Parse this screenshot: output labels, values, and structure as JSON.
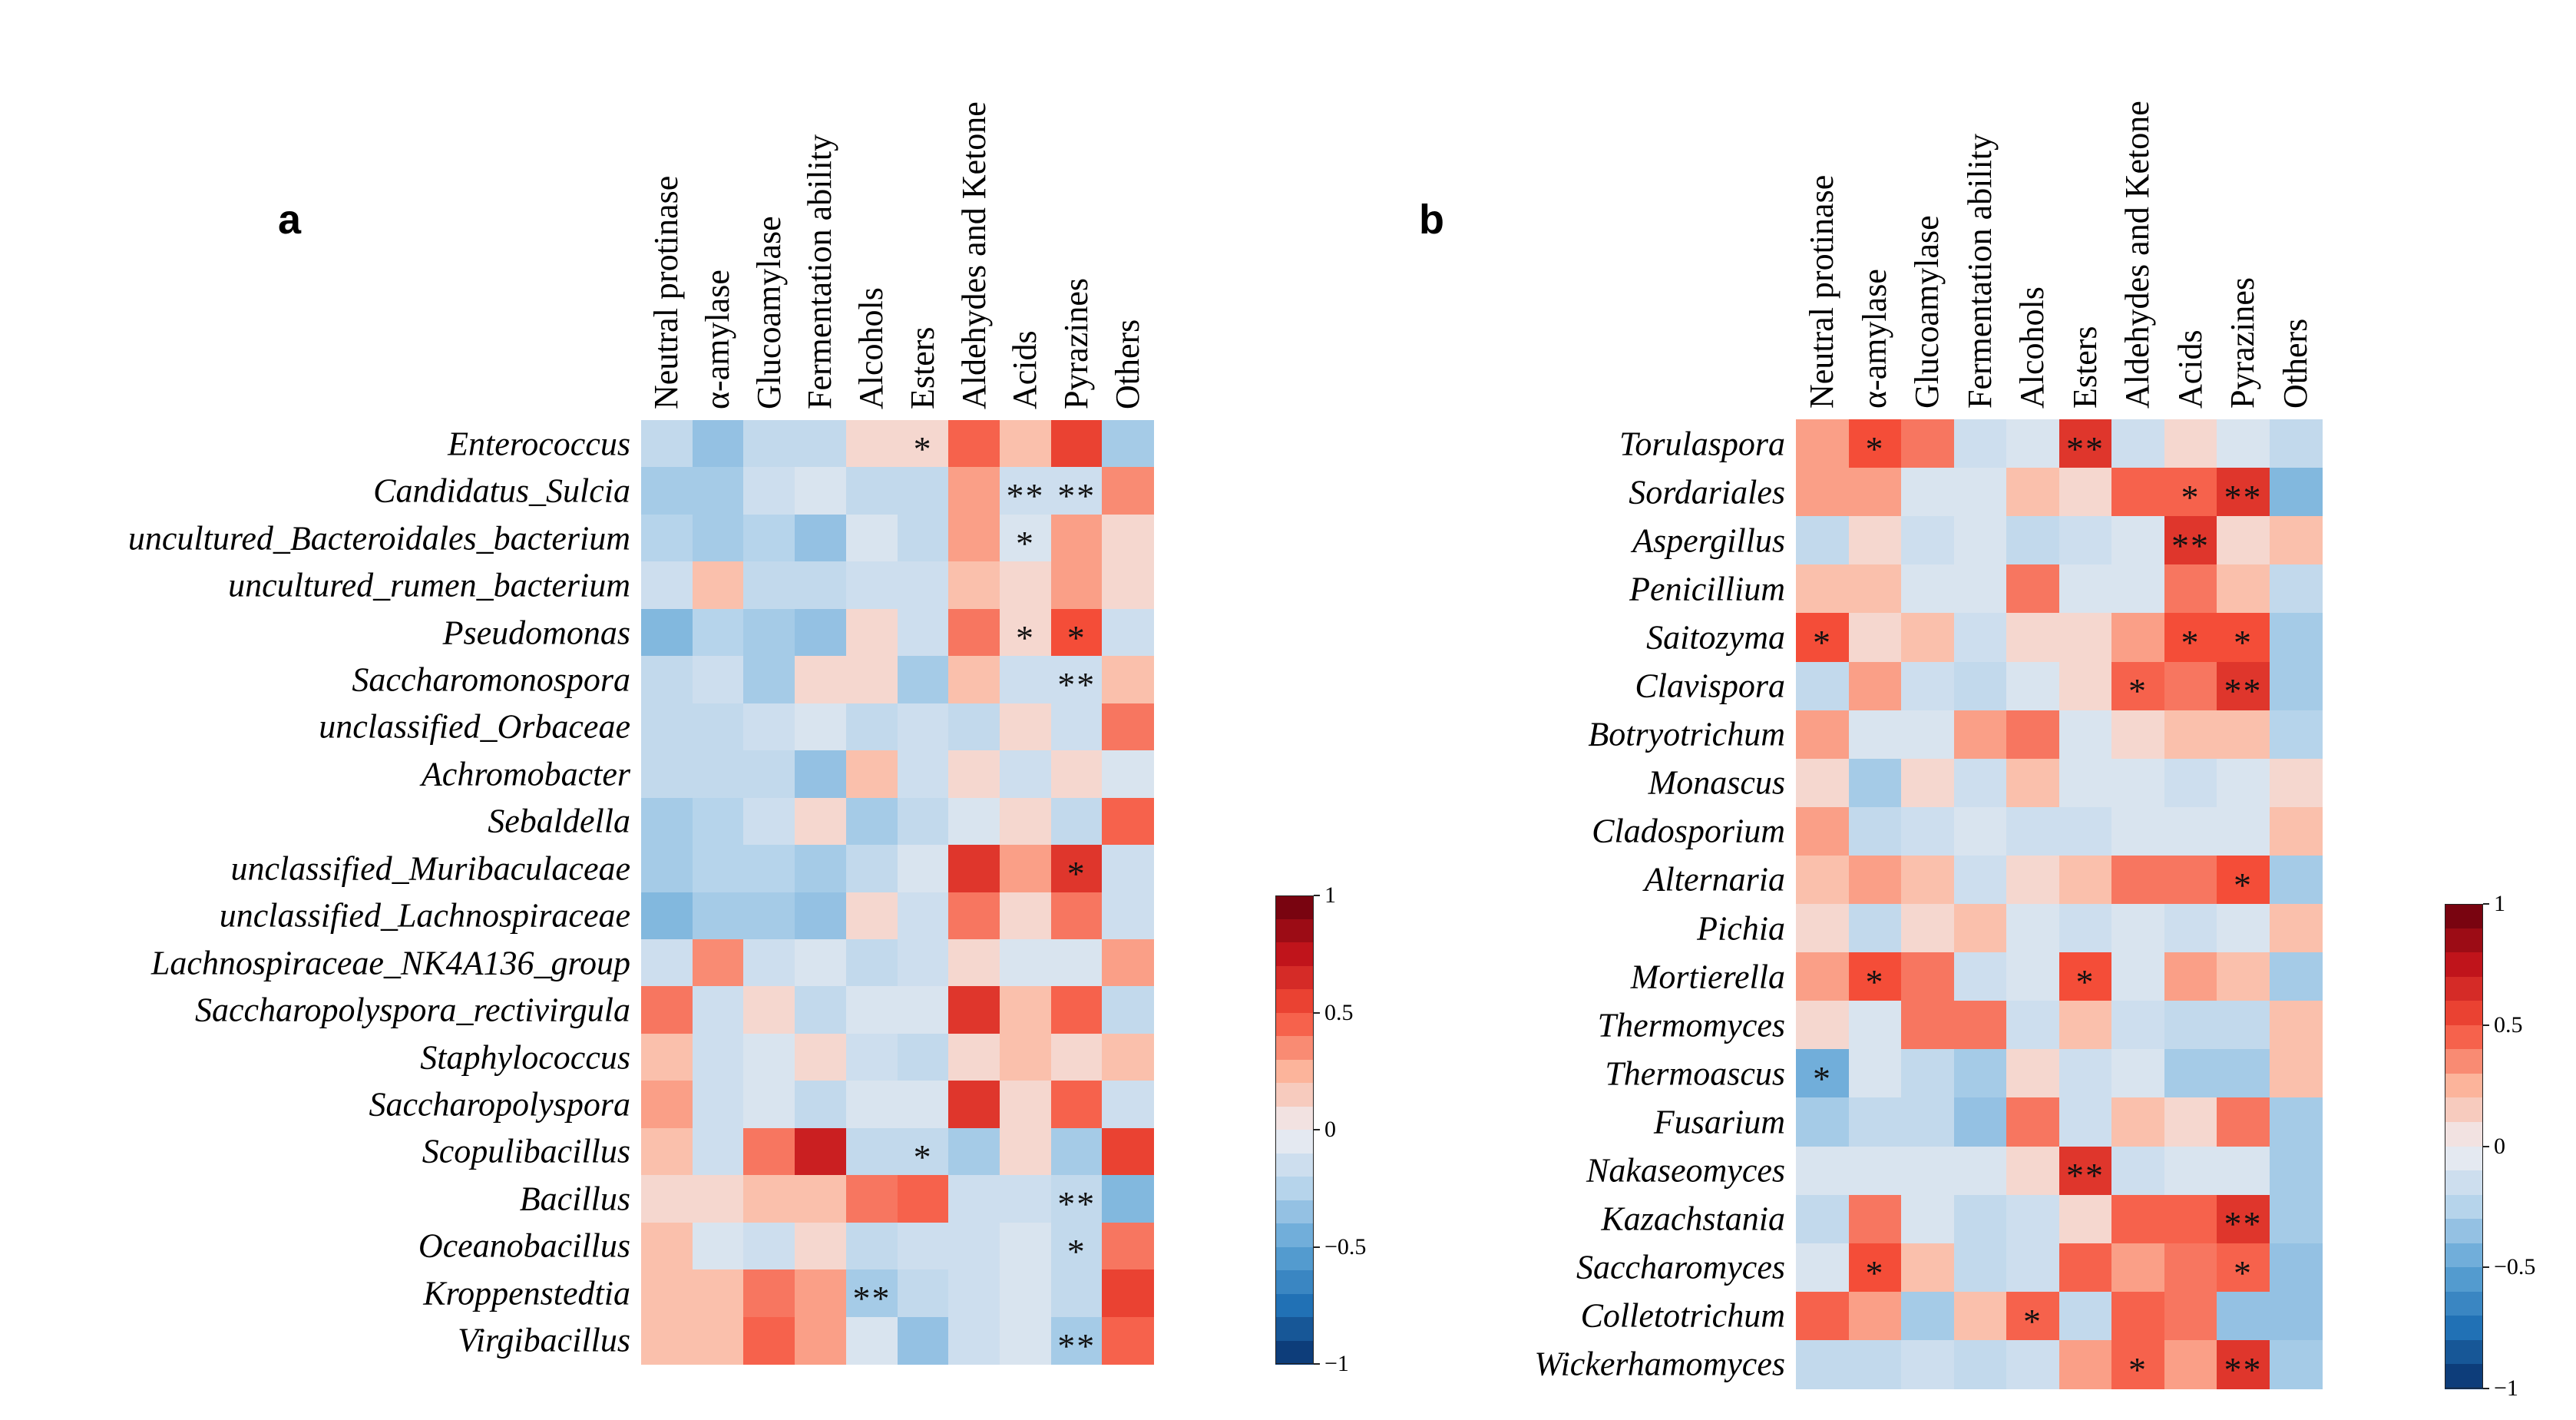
{
  "chart_data": [
    {
      "type": "heatmap",
      "panel_label": "a",
      "columns": [
        "Neutral protinase",
        "α-amylase",
        "Glucoamylase",
        "Fermentation ability",
        "Alcohols",
        "Esters",
        "Aldehydes and Ketone",
        "Acids",
        "Pyrazines",
        "Others"
      ],
      "rows": [
        "Enterococcus",
        "Candidatus_Sulcia",
        "uncultured_Bacteroidales_bacterium",
        "uncultured_rumen_bacterium",
        "Pseudomonas",
        "Saccharomonospora",
        "unclassified_Orbaceae",
        "Achromobacter",
        "Sebaldella",
        "unclassified_Muribaculaceae",
        "unclassified_Lachnospiraceae",
        "Lachnospiraceae_NK4A136_group",
        "Saccharopolyspora_rectivirgula",
        "Staphylococcus",
        "Saccharopolyspora",
        "Scopulibacillus",
        "Bacillus",
        "Oceanobacillus",
        "Kroppenstedtia",
        "Virgibacillus"
      ],
      "values": [
        [
          -0.2,
          -0.35,
          -0.2,
          -0.2,
          0.1,
          0.1,
          0.45,
          0.2,
          0.55,
          -0.3
        ],
        [
          -0.3,
          -0.3,
          -0.15,
          -0.1,
          -0.2,
          -0.2,
          0.3,
          -0.15,
          -0.15,
          0.35
        ],
        [
          -0.25,
          -0.3,
          -0.25,
          -0.35,
          -0.1,
          -0.2,
          0.3,
          -0.1,
          0.3,
          0.1
        ],
        [
          -0.15,
          0.2,
          -0.2,
          -0.2,
          -0.15,
          -0.15,
          0.2,
          0.1,
          0.3,
          0.1
        ],
        [
          -0.4,
          -0.25,
          -0.3,
          -0.35,
          0.1,
          -0.15,
          0.4,
          0.1,
          0.5,
          -0.15
        ],
        [
          -0.2,
          -0.15,
          -0.3,
          0.1,
          0.1,
          -0.3,
          0.2,
          -0.15,
          -0.15,
          0.2
        ],
        [
          -0.2,
          -0.2,
          -0.15,
          -0.1,
          -0.2,
          -0.15,
          -0.2,
          0.1,
          -0.15,
          0.4
        ],
        [
          -0.2,
          -0.2,
          -0.2,
          -0.35,
          0.2,
          -0.15,
          0.1,
          -0.15,
          0.1,
          -0.1
        ],
        [
          -0.3,
          -0.25,
          -0.15,
          0.1,
          -0.3,
          -0.2,
          -0.1,
          0.1,
          -0.2,
          0.45
        ],
        [
          -0.3,
          -0.25,
          -0.25,
          -0.3,
          -0.2,
          -0.1,
          0.6,
          0.3,
          0.6,
          -0.15
        ],
        [
          -0.4,
          -0.3,
          -0.3,
          -0.35,
          0.1,
          -0.15,
          0.4,
          0.1,
          0.4,
          -0.15
        ],
        [
          -0.15,
          0.35,
          -0.15,
          -0.1,
          -0.2,
          -0.15,
          0.1,
          -0.1,
          -0.1,
          0.3
        ],
        [
          0.4,
          -0.15,
          0.1,
          -0.2,
          -0.1,
          -0.1,
          0.6,
          0.2,
          0.45,
          -0.2
        ],
        [
          0.2,
          -0.15,
          -0.1,
          0.1,
          -0.15,
          -0.2,
          0.1,
          0.2,
          0.1,
          0.2
        ],
        [
          0.3,
          -0.15,
          -0.1,
          -0.2,
          -0.1,
          -0.1,
          0.6,
          0.1,
          0.45,
          -0.15
        ],
        [
          0.2,
          -0.15,
          0.4,
          0.7,
          -0.2,
          -0.2,
          -0.3,
          0.1,
          -0.3,
          0.55
        ],
        [
          0.1,
          0.1,
          0.2,
          0.2,
          0.4,
          0.45,
          -0.15,
          -0.15,
          -0.2,
          -0.4
        ],
        [
          0.2,
          -0.1,
          -0.15,
          0.1,
          -0.2,
          -0.15,
          -0.15,
          -0.1,
          -0.2,
          0.4
        ],
        [
          0.2,
          0.2,
          0.4,
          0.3,
          -0.3,
          -0.2,
          -0.15,
          -0.1,
          -0.2,
          0.55
        ],
        [
          0.2,
          0.2,
          0.45,
          0.3,
          -0.1,
          -0.35,
          -0.15,
          -0.1,
          -0.3,
          0.45
        ]
      ],
      "significance": [
        [
          "",
          "",
          "",
          "",
          "",
          "*",
          "",
          "",
          "",
          ""
        ],
        [
          "",
          "",
          "",
          "",
          "",
          "",
          "",
          "**",
          "**",
          ""
        ],
        [
          "",
          "",
          "",
          "",
          "",
          "",
          "",
          "*",
          "",
          ""
        ],
        [
          "",
          "",
          "",
          "",
          "",
          "",
          "",
          "",
          "",
          ""
        ],
        [
          "",
          "",
          "",
          "",
          "",
          "",
          "",
          "*",
          "*",
          ""
        ],
        [
          "",
          "",
          "",
          "",
          "",
          "",
          "",
          "",
          "**",
          ""
        ],
        [
          "",
          "",
          "",
          "",
          "",
          "",
          "",
          "",
          "",
          ""
        ],
        [
          "",
          "",
          "",
          "",
          "",
          "",
          "",
          "",
          "",
          ""
        ],
        [
          "",
          "",
          "",
          "",
          "",
          "",
          "",
          "",
          "",
          ""
        ],
        [
          "",
          "",
          "",
          "",
          "",
          "",
          "",
          "",
          "*",
          ""
        ],
        [
          "",
          "",
          "",
          "",
          "",
          "",
          "",
          "",
          "",
          ""
        ],
        [
          "",
          "",
          "",
          "",
          "",
          "",
          "",
          "",
          "",
          ""
        ],
        [
          "",
          "",
          "",
          "",
          "",
          "",
          "",
          "",
          "",
          ""
        ],
        [
          "",
          "",
          "",
          "",
          "",
          "",
          "",
          "",
          "",
          ""
        ],
        [
          "",
          "",
          "",
          "",
          "",
          "",
          "",
          "",
          "",
          ""
        ],
        [
          "",
          "",
          "",
          "",
          "",
          "*",
          "",
          "",
          "",
          ""
        ],
        [
          "",
          "",
          "",
          "",
          "",
          "",
          "",
          "",
          "**",
          ""
        ],
        [
          "",
          "",
          "",
          "",
          "",
          "",
          "",
          "",
          "*",
          ""
        ],
        [
          "",
          "",
          "",
          "",
          "**",
          "",
          "",
          "",
          "",
          ""
        ],
        [
          "",
          "",
          "",
          "",
          "",
          "",
          "",
          "",
          "**",
          ""
        ]
      ],
      "colorbar": {
        "range": [
          -1,
          1
        ],
        "ticks": [
          "1",
          "0.5",
          "0",
          "−0.5",
          "−1"
        ]
      }
    },
    {
      "type": "heatmap",
      "panel_label": "b",
      "columns": [
        "Neutral protinase",
        "α-amylase",
        "Glucoamylase",
        "Fermentation ability",
        "Alcohols",
        "Esters",
        "Aldehydes and Ketone",
        "Acids",
        "Pyrazines",
        "Others"
      ],
      "rows": [
        "Torulaspora",
        "Sordariales",
        "Aspergillus",
        "Penicillium",
        "Saitozyma",
        "Clavispora",
        "Botryotrichum",
        "Monascus",
        "Cladosporium",
        "Alternaria",
        "Pichia",
        "Mortierella",
        "Thermomyces",
        "Thermoascus",
        "Fusarium",
        "Nakaseomyces",
        "Kazachstania",
        "Saccharomyces",
        "Colletotrichum",
        "Wickerhamomyces"
      ],
      "values": [
        [
          0.3,
          0.5,
          0.4,
          -0.15,
          -0.1,
          0.6,
          -0.15,
          0.1,
          -0.1,
          -0.2
        ],
        [
          0.3,
          0.3,
          -0.1,
          -0.1,
          0.2,
          0.1,
          0.45,
          0.45,
          0.6,
          -0.4
        ],
        [
          -0.2,
          0.1,
          -0.15,
          -0.1,
          -0.2,
          -0.15,
          -0.1,
          0.6,
          0.1,
          0.2
        ],
        [
          0.2,
          0.2,
          -0.1,
          -0.1,
          0.4,
          -0.1,
          -0.1,
          0.4,
          0.2,
          -0.2
        ],
        [
          0.5,
          0.1,
          0.2,
          -0.15,
          0.1,
          0.1,
          0.3,
          0.5,
          0.5,
          -0.3
        ],
        [
          -0.2,
          0.3,
          -0.15,
          -0.2,
          -0.1,
          0.1,
          0.45,
          0.4,
          0.6,
          -0.3
        ],
        [
          0.3,
          -0.1,
          -0.1,
          0.3,
          0.4,
          -0.1,
          0.1,
          0.2,
          0.2,
          -0.25
        ],
        [
          0.1,
          -0.3,
          0.1,
          -0.15,
          0.2,
          -0.1,
          -0.1,
          -0.15,
          -0.1,
          0.1
        ],
        [
          0.3,
          -0.2,
          -0.15,
          -0.1,
          -0.15,
          -0.15,
          -0.1,
          -0.1,
          -0.1,
          0.2
        ],
        [
          0.2,
          0.3,
          0.2,
          -0.15,
          0.1,
          0.2,
          0.4,
          0.4,
          0.5,
          -0.3
        ],
        [
          0.1,
          -0.2,
          0.1,
          0.2,
          -0.1,
          -0.15,
          -0.1,
          -0.15,
          -0.1,
          0.2
        ],
        [
          0.3,
          0.5,
          0.4,
          -0.15,
          -0.1,
          0.5,
          -0.1,
          0.3,
          0.2,
          -0.3
        ],
        [
          0.1,
          -0.1,
          0.4,
          0.4,
          -0.15,
          0.2,
          -0.15,
          -0.2,
          -0.2,
          0.2
        ],
        [
          -0.45,
          -0.1,
          -0.2,
          -0.3,
          0.1,
          -0.15,
          -0.1,
          -0.3,
          -0.3,
          0.2
        ],
        [
          -0.3,
          -0.2,
          -0.2,
          -0.35,
          0.4,
          -0.15,
          0.2,
          0.1,
          0.4,
          -0.3
        ],
        [
          -0.1,
          -0.1,
          -0.1,
          -0.1,
          0.1,
          0.6,
          -0.15,
          -0.1,
          -0.1,
          -0.3
        ],
        [
          -0.2,
          0.4,
          -0.1,
          -0.2,
          -0.15,
          0.1,
          0.45,
          0.45,
          0.6,
          -0.3
        ],
        [
          -0.1,
          0.5,
          0.2,
          -0.2,
          -0.15,
          0.45,
          0.3,
          0.4,
          0.45,
          -0.35
        ],
        [
          0.45,
          0.3,
          -0.3,
          0.2,
          0.45,
          -0.2,
          0.45,
          0.4,
          -0.35,
          -0.35
        ],
        [
          -0.2,
          -0.2,
          -0.15,
          -0.2,
          -0.15,
          0.3,
          0.45,
          0.3,
          0.6,
          -0.3
        ]
      ],
      "significance": [
        [
          "",
          "*",
          "",
          "",
          "",
          "**",
          "",
          "",
          "",
          ""
        ],
        [
          "",
          "",
          "",
          "",
          "",
          "",
          "",
          "*",
          "**",
          ""
        ],
        [
          "",
          "",
          "",
          "",
          "",
          "",
          "",
          "**",
          "",
          ""
        ],
        [
          "",
          "",
          "",
          "",
          "",
          "",
          "",
          "",
          "",
          ""
        ],
        [
          "*",
          "",
          "",
          "",
          "",
          "",
          "",
          "*",
          "*",
          ""
        ],
        [
          "",
          "",
          "",
          "",
          "",
          "",
          "*",
          "",
          "**",
          ""
        ],
        [
          "",
          "",
          "",
          "",
          "",
          "",
          "",
          "",
          "",
          ""
        ],
        [
          "",
          "",
          "",
          "",
          "",
          "",
          "",
          "",
          "",
          ""
        ],
        [
          "",
          "",
          "",
          "",
          "",
          "",
          "",
          "",
          "",
          ""
        ],
        [
          "",
          "",
          "",
          "",
          "",
          "",
          "",
          "",
          "*",
          ""
        ],
        [
          "",
          "",
          "",
          "",
          "",
          "",
          "",
          "",
          "",
          ""
        ],
        [
          "",
          "*",
          "",
          "",
          "",
          "*",
          "",
          "",
          "",
          ""
        ],
        [
          "",
          "",
          "",
          "",
          "",
          "",
          "",
          "",
          "",
          ""
        ],
        [
          "*",
          "",
          "",
          "",
          "",
          "",
          "",
          "",
          "",
          ""
        ],
        [
          "",
          "",
          "",
          "",
          "",
          "",
          "",
          "",
          "",
          ""
        ],
        [
          "",
          "",
          "",
          "",
          "",
          "**",
          "",
          "",
          "",
          ""
        ],
        [
          "",
          "",
          "",
          "",
          "",
          "",
          "",
          "",
          "**",
          ""
        ],
        [
          "",
          "*",
          "",
          "",
          "",
          "",
          "",
          "",
          "*",
          ""
        ],
        [
          "",
          "",
          "",
          "",
          "*",
          "",
          "",
          "",
          "",
          ""
        ],
        [
          "",
          "",
          "",
          "",
          "",
          "",
          "*",
          "",
          "**",
          ""
        ]
      ],
      "colorbar": {
        "range": [
          -1,
          1
        ],
        "ticks": [
          "1",
          "0.5",
          "0",
          "−0.5",
          "−1"
        ]
      }
    }
  ]
}
